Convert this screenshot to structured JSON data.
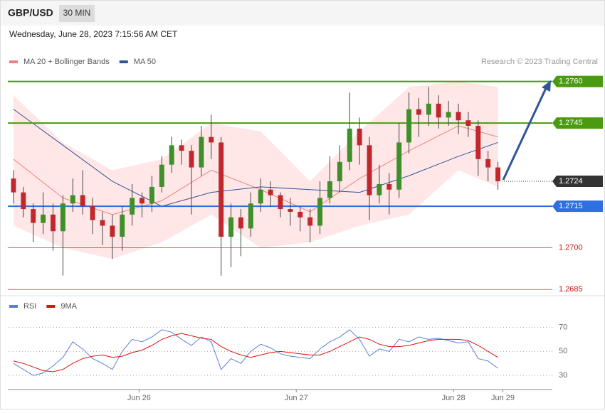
{
  "header": {
    "symbol": "GBP/USD",
    "interval": "30 MIN",
    "date": "Wednesday, June 28, 2023 7:15:56 AM CET",
    "credit": "Research © 2023 Trading Central"
  },
  "chart_data": [
    {
      "type": "candlestick",
      "legend": [
        {
          "name": "MA 20 + Bollinger Bands",
          "color": "#f08080"
        },
        {
          "name": "MA 50",
          "color": "#2f5597"
        }
      ],
      "xlim": [
        -0.5,
        54.5
      ],
      "ylim": [
        1.2683,
        1.2774
      ],
      "up_color": "#3f8f2a",
      "down_color": "#c0282e",
      "open": [
        1.2725,
        1.272,
        1.2714,
        1.2709,
        1.2712,
        1.2706,
        1.2716,
        1.2719,
        1.2715,
        1.271,
        1.2708,
        1.2704,
        1.2712,
        1.2718,
        1.2716,
        1.2722,
        1.273,
        1.2737,
        1.2735,
        1.2729,
        1.274,
        1.2738,
        1.2704,
        1.2711,
        1.2707,
        1.2716,
        1.2721,
        1.2719,
        1.2714,
        1.2713,
        1.2711,
        1.2708,
        1.2718,
        1.2724,
        1.2731,
        1.2743,
        1.2737,
        1.2719,
        1.2723,
        1.2721,
        1.2738,
        1.275,
        1.2748,
        1.2752,
        1.2747,
        1.2749,
        1.2746,
        1.2744,
        1.2732,
        1.2729
      ],
      "high": [
        1.2728,
        1.2722,
        1.2716,
        1.272,
        1.2716,
        1.2719,
        1.2725,
        1.2728,
        1.2718,
        1.2713,
        1.2712,
        1.2715,
        1.2723,
        1.272,
        1.2726,
        1.2733,
        1.274,
        1.2739,
        1.2737,
        1.2744,
        1.2748,
        1.274,
        1.2716,
        1.2714,
        1.272,
        1.2725,
        1.2724,
        1.272,
        1.2718,
        1.2715,
        1.2714,
        1.2724,
        1.2733,
        1.2737,
        1.2756,
        1.2747,
        1.274,
        1.273,
        1.2727,
        1.2745,
        1.2756,
        1.2754,
        1.2758,
        1.2755,
        1.2753,
        1.2752,
        1.2749,
        1.2746,
        1.2735,
        1.2731
      ],
      "low": [
        1.2716,
        1.2711,
        1.2702,
        1.2705,
        1.2699,
        1.269,
        1.2713,
        1.2712,
        1.2705,
        1.2701,
        1.2696,
        1.2699,
        1.2708,
        1.2711,
        1.2713,
        1.272,
        1.2727,
        1.273,
        1.2712,
        1.2726,
        1.2732,
        1.269,
        1.2693,
        1.2697,
        1.2704,
        1.2713,
        1.2715,
        1.2711,
        1.2708,
        1.2706,
        1.2702,
        1.2705,
        1.2716,
        1.272,
        1.2728,
        1.273,
        1.271,
        1.2716,
        1.2712,
        1.2718,
        1.2734,
        1.274,
        1.2744,
        1.2743,
        1.2744,
        1.2741,
        1.274,
        1.2726,
        1.2724,
        1.2721
      ],
      "close": [
        1.272,
        1.2714,
        1.2709,
        1.2712,
        1.2706,
        1.2716,
        1.2719,
        1.2715,
        1.271,
        1.2708,
        1.2704,
        1.2712,
        1.2718,
        1.2716,
        1.2722,
        1.273,
        1.2737,
        1.2735,
        1.2729,
        1.274,
        1.2738,
        1.2704,
        1.2711,
        1.2707,
        1.2716,
        1.2721,
        1.2719,
        1.2714,
        1.2713,
        1.2711,
        1.2708,
        1.2718,
        1.2724,
        1.2731,
        1.2743,
        1.2737,
        1.2719,
        1.2723,
        1.2721,
        1.2738,
        1.275,
        1.2748,
        1.2752,
        1.2747,
        1.2749,
        1.2746,
        1.2744,
        1.2732,
        1.2729,
        1.2724
      ],
      "bands": {
        "x": [
          0,
          5,
          10,
          15,
          20,
          25,
          30,
          35,
          40,
          45,
          49
        ],
        "upper": [
          1.2755,
          1.2738,
          1.2728,
          1.2732,
          1.2745,
          1.2742,
          1.2724,
          1.2742,
          1.2758,
          1.276,
          1.2758
        ],
        "ma20": [
          1.2732,
          1.2718,
          1.2712,
          1.2717,
          1.2728,
          1.2721,
          1.2713,
          1.2725,
          1.2735,
          1.2744,
          1.274
        ],
        "lower": [
          1.2708,
          1.27,
          1.2696,
          1.2702,
          1.2712,
          1.27,
          1.2702,
          1.2708,
          1.2712,
          1.2728,
          1.2722
        ],
        "ma50": [
          1.275,
          1.2737,
          1.2724,
          1.2715,
          1.272,
          1.2722,
          1.2721,
          1.272,
          1.2726,
          1.2733,
          1.2738
        ]
      },
      "levels": [
        {
          "value": 1.276,
          "label": "1.2760",
          "color": "#4a9a12",
          "style": "box"
        },
        {
          "value": 1.2745,
          "label": "1.2745",
          "color": "#4a9a12",
          "style": "box"
        },
        {
          "value": 1.2724,
          "label": "1.2724",
          "color": "#333333",
          "style": "current"
        },
        {
          "value": 1.2715,
          "label": "1.2715",
          "color": "#2f6fe0",
          "style": "box"
        },
        {
          "value": 1.27,
          "label": "1.2700",
          "color": "#cc1111",
          "style": "text"
        },
        {
          "value": 1.2685,
          "label": "1.2685",
          "color": "#cc1111",
          "style": "text"
        }
      ]
    },
    {
      "type": "line",
      "xlim": [
        -0.5,
        54.5
      ],
      "ylim": [
        20,
        94
      ],
      "yticks": [
        70,
        50,
        30
      ],
      "grid": true,
      "xticks": [
        {
          "value": 12.7,
          "label": "Jun 26"
        },
        {
          "value": 28.6,
          "label": "Jun 27"
        },
        {
          "value": 44.5,
          "label": "Jun 28"
        },
        {
          "value": 49.5,
          "label": "Jun 29"
        }
      ],
      "series": [
        {
          "name": "RSI",
          "color": "#5b7fd6",
          "values": [
            40,
            35,
            30,
            32,
            38,
            45,
            58,
            52,
            44,
            40,
            35,
            50,
            60,
            58,
            62,
            68,
            66,
            60,
            55,
            62,
            58,
            35,
            44,
            40,
            50,
            56,
            53,
            48,
            46,
            45,
            44,
            52,
            58,
            62,
            68,
            60,
            46,
            52,
            50,
            60,
            58,
            62,
            60,
            61,
            59,
            57,
            58,
            44,
            42,
            36
          ]
        },
        {
          "name": "9MA",
          "color": "#e01010",
          "values": [
            42,
            40,
            37,
            34,
            33,
            35,
            40,
            44,
            46,
            47,
            45,
            46,
            49,
            51,
            55,
            60,
            63,
            65,
            63,
            61,
            60,
            54,
            50,
            47,
            45,
            47,
            49,
            50,
            49,
            48,
            47,
            47,
            50,
            54,
            58,
            62,
            60,
            56,
            54,
            54,
            55,
            57,
            59,
            60,
            60,
            60,
            59,
            55,
            50,
            45
          ]
        }
      ]
    }
  ]
}
